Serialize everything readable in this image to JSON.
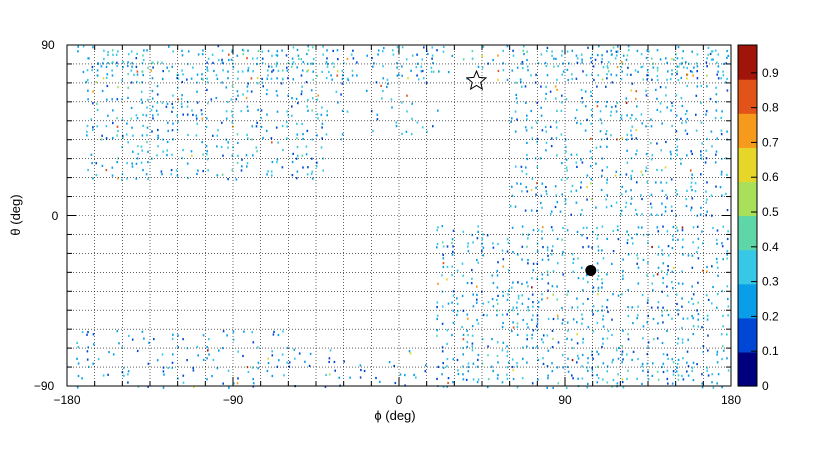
{
  "chart_data": {
    "type": "heatmap",
    "title": "",
    "xlabel": "ϕ (deg)",
    "ylabel": "θ (deg)",
    "xlim": [
      -180,
      180
    ],
    "ylim": [
      -90,
      90
    ],
    "x_ticks": [
      -180,
      -90,
      0,
      90,
      180
    ],
    "y_ticks": [
      -90,
      0,
      90
    ],
    "x_tick_labels": [
      "−180",
      "−90",
      "0",
      "90",
      "180"
    ],
    "y_tick_labels": [
      "−90",
      "0",
      "90"
    ],
    "grid": true,
    "colorbar": {
      "min": 0,
      "max": 0.98,
      "ticks": [
        0,
        0.1,
        0.2,
        0.3,
        0.4,
        0.5,
        0.6,
        0.7,
        0.8,
        0.9
      ],
      "tick_labels": [
        "0",
        "0.1",
        "0.2",
        "0.3",
        "0.4",
        "0.5",
        "0.6",
        "0.7",
        "0.8",
        "0.9"
      ],
      "colormap": [
        "#00007f",
        "#0047d6",
        "#0a9de8",
        "#37c8e6",
        "#5fd6a8",
        "#a8e05a",
        "#e6d62a",
        "#f59a1a",
        "#e2531a",
        "#a0140a"
      ]
    },
    "markers": [
      {
        "type": "star",
        "phi": 42,
        "theta": 71,
        "color": "#000000",
        "fill": "none"
      },
      {
        "type": "filled-circle",
        "phi": 104,
        "theta": -29,
        "color": "#000000"
      }
    ],
    "density_regions": [
      {
        "phi": [
          -170,
          -40
        ],
        "theta": [
          20,
          88
        ],
        "density": 0.55,
        "mean": 0.28
      },
      {
        "phi": [
          -175,
          -60
        ],
        "theta": [
          -90,
          -60
        ],
        "density": 0.35,
        "mean": 0.25
      },
      {
        "phi": [
          -175,
          180
        ],
        "theta": [
          72,
          90
        ],
        "density": 0.45,
        "mean": 0.3
      },
      {
        "phi": [
          -40,
          20
        ],
        "theta": [
          40,
          88
        ],
        "density": 0.3,
        "mean": 0.25
      },
      {
        "phi": [
          60,
          178
        ],
        "theta": [
          0,
          88
        ],
        "density": 0.5,
        "mean": 0.27
      },
      {
        "phi": [
          20,
          178
        ],
        "theta": [
          -90,
          -5
        ],
        "density": 0.6,
        "mean": 0.28
      },
      {
        "phi": [
          -60,
          20
        ],
        "theta": [
          -90,
          -70
        ],
        "density": 0.2,
        "mean": 0.22
      }
    ]
  }
}
